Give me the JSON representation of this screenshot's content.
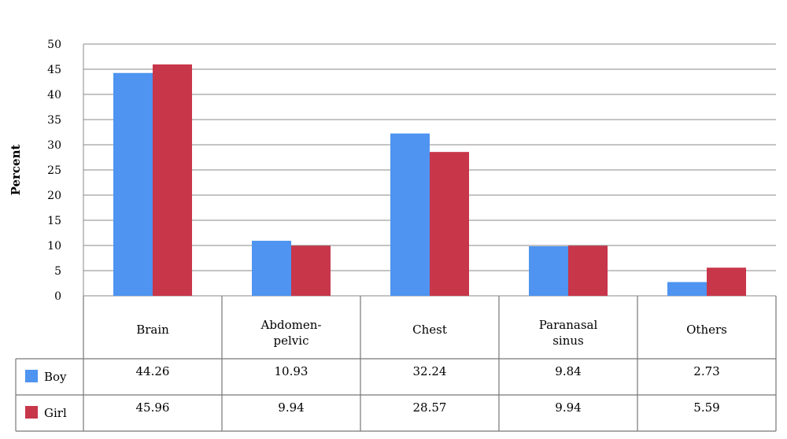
{
  "chart_data": {
    "type": "bar",
    "ylabel": "Percent",
    "xlabel": "",
    "ylim": [
      0,
      50
    ],
    "yticks": [
      0,
      5,
      10,
      15,
      20,
      25,
      30,
      35,
      40,
      45,
      50
    ],
    "grid": true,
    "categories": [
      [
        "Brain"
      ],
      [
        "Abdomen-",
        "pelvic"
      ],
      [
        "Chest"
      ],
      [
        "Paranasal",
        "sinus"
      ],
      [
        "Others"
      ]
    ],
    "series": [
      {
        "name": "Boy",
        "color": "#4e94f0",
        "values": [
          44.26,
          10.93,
          32.24,
          9.84,
          2.73
        ],
        "labels": [
          "44.26",
          "10.93",
          "32.24",
          "9.84",
          "2.73"
        ]
      },
      {
        "name": "Girl",
        "color": "#c8364a",
        "values": [
          45.96,
          9.94,
          28.57,
          9.94,
          5.59
        ],
        "labels": [
          "45.96",
          "9.94",
          "28.57",
          "9.94",
          "5.59"
        ]
      }
    ],
    "legend": "data-table"
  }
}
